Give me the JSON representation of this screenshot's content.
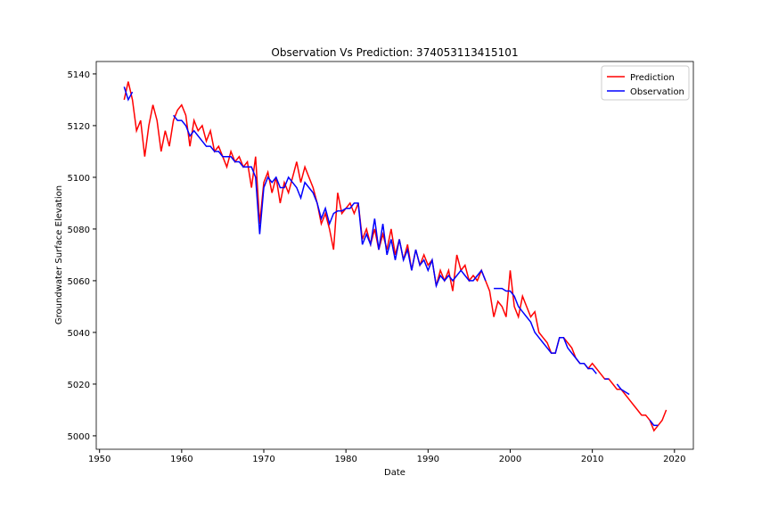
{
  "chart_data": {
    "type": "line",
    "title": "Observation Vs Prediction: 374053113415101",
    "x_label": "Date",
    "y_label": "Groundwater Surface Elevation",
    "xlim": [
      1949.6,
      2022.3
    ],
    "ylim": [
      4994.8,
      5144.8
    ],
    "xticks": [
      1950,
      1960,
      1970,
      1980,
      1990,
      2000,
      2010,
      2020
    ],
    "yticks": [
      5000,
      5020,
      5040,
      5060,
      5080,
      5100,
      5120,
      5140
    ],
    "legend": "upper right",
    "x": [
      1953,
      1953.5,
      1954,
      1954.5,
      1955,
      1955.5,
      1956,
      1956.5,
      1957,
      1957.5,
      1958,
      1958.5,
      1959,
      1959.5,
      1960,
      1960.5,
      1961,
      1961.5,
      1962,
      1962.5,
      1963,
      1963.5,
      1964,
      1964.5,
      1965,
      1965.5,
      1966,
      1966.5,
      1967,
      1967.5,
      1968,
      1968.5,
      1969,
      1969.5,
      1970,
      1970.5,
      1971,
      1971.5,
      1972,
      1972.5,
      1973,
      1973.5,
      1974,
      1974.5,
      1975,
      1975.5,
      1976,
      1976.5,
      1977,
      1977.5,
      1978,
      1978.5,
      1979,
      1979.5,
      1980,
      1980.5,
      1981,
      1981.5,
      1982,
      1982.5,
      1983,
      1983.5,
      1984,
      1984.5,
      1985,
      1985.5,
      1986,
      1986.5,
      1987,
      1987.5,
      1988,
      1988.5,
      1989,
      1989.5,
      1990,
      1990.5,
      1991,
      1991.5,
      1992,
      1992.5,
      1993,
      1993.5,
      1994,
      1994.5,
      1995,
      1995.5,
      1996,
      1996.5,
      1997,
      1997.5,
      1998,
      1998.5,
      1999,
      1999.5,
      2000,
      2000.5,
      2001,
      2001.5,
      2002,
      2002.5,
      2003,
      2003.5,
      2004,
      2004.5,
      2005,
      2005.5,
      2006,
      2006.5,
      2007,
      2007.5,
      2008,
      2008.5,
      2009,
      2009.5,
      2010,
      2010.5,
      2011,
      2011.5,
      2012,
      2012.5,
      2013,
      2013.5,
      2014,
      2014.5,
      2015,
      2015.5,
      2016,
      2016.5,
      2017,
      2017.5,
      2018,
      2018.5,
      2019
    ],
    "series": [
      {
        "name": "Prediction",
        "color": "#ff0000",
        "values": [
          5130,
          5137,
          5130,
          5118,
          5122,
          5108,
          5120,
          5128,
          5122,
          5110,
          5118,
          5112,
          5122,
          5126,
          5128,
          5124,
          5112,
          5122,
          5118,
          5120,
          5114,
          5118,
          5110,
          5112,
          5108,
          5104,
          5110,
          5106,
          5108,
          5104,
          5106,
          5096,
          5108,
          5082,
          5098,
          5102,
          5094,
          5100,
          5090,
          5098,
          5094,
          5100,
          5106,
          5098,
          5104,
          5100,
          5096,
          5090,
          5082,
          5086,
          5080,
          5072,
          5094,
          5086,
          5088,
          5090,
          5086,
          5090,
          5076,
          5080,
          5074,
          5080,
          5072,
          5078,
          5072,
          5080,
          5070,
          5076,
          5068,
          5074,
          5064,
          5072,
          5066,
          5070,
          5066,
          5068,
          5058,
          5064,
          5060,
          5064,
          5056,
          5070,
          5064,
          5066,
          5060,
          5062,
          5060,
          5064,
          5060,
          5056,
          5046,
          5052,
          5050,
          5046,
          5064,
          5050,
          5046,
          5054,
          5050,
          5046,
          5048,
          5040,
          5038,
          5036,
          5032,
          5032,
          5038,
          5038,
          5036,
          5034,
          5030,
          5028,
          5028,
          5026,
          5028,
          5026,
          5024,
          5022,
          5022,
          5020,
          5018,
          5018,
          5016,
          5014,
          5012,
          5010,
          5008,
          5008,
          5006,
          5002,
          5004,
          5006,
          5010
        ]
      },
      {
        "name": "Observation",
        "color": "#0000ff",
        "values": [
          5135,
          5130,
          5133,
          null,
          null,
          null,
          null,
          null,
          null,
          null,
          null,
          null,
          5124,
          5122,
          5122,
          5120,
          5116,
          5118,
          5116,
          5114,
          5112,
          5112,
          5110,
          5110,
          5108,
          5108,
          5108,
          5106,
          5106,
          5104,
          5104,
          5104,
          5100,
          5078,
          5096,
          5100,
          5098,
          5100,
          5096,
          5096,
          5100,
          5098,
          5096,
          5092,
          5098,
          5096,
          5094,
          5090,
          5084,
          5088,
          5082,
          5086,
          5087,
          5087,
          5088,
          5088,
          5090,
          5090,
          5074,
          5078,
          5074,
          5084,
          5072,
          5082,
          5070,
          5076,
          5068,
          5076,
          5068,
          5072,
          5064,
          5072,
          5066,
          5068,
          5064,
          5068,
          5058,
          5062,
          5060,
          5062,
          5060,
          5062,
          5064,
          5062,
          5060,
          5060,
          5062,
          5064,
          5060,
          null,
          5057,
          5057,
          5057,
          5056,
          5056,
          5054,
          5050,
          5048,
          5046,
          5044,
          5040,
          5038,
          5036,
          5034,
          5032,
          5032,
          5038,
          5038,
          5034,
          5032,
          5030,
          5028,
          5028,
          5026,
          5026,
          5024,
          null,
          5022,
          5022,
          null,
          5020,
          5018,
          5017,
          5016,
          null,
          null,
          null,
          null,
          5006,
          5004,
          5004,
          null,
          null
        ]
      }
    ]
  }
}
